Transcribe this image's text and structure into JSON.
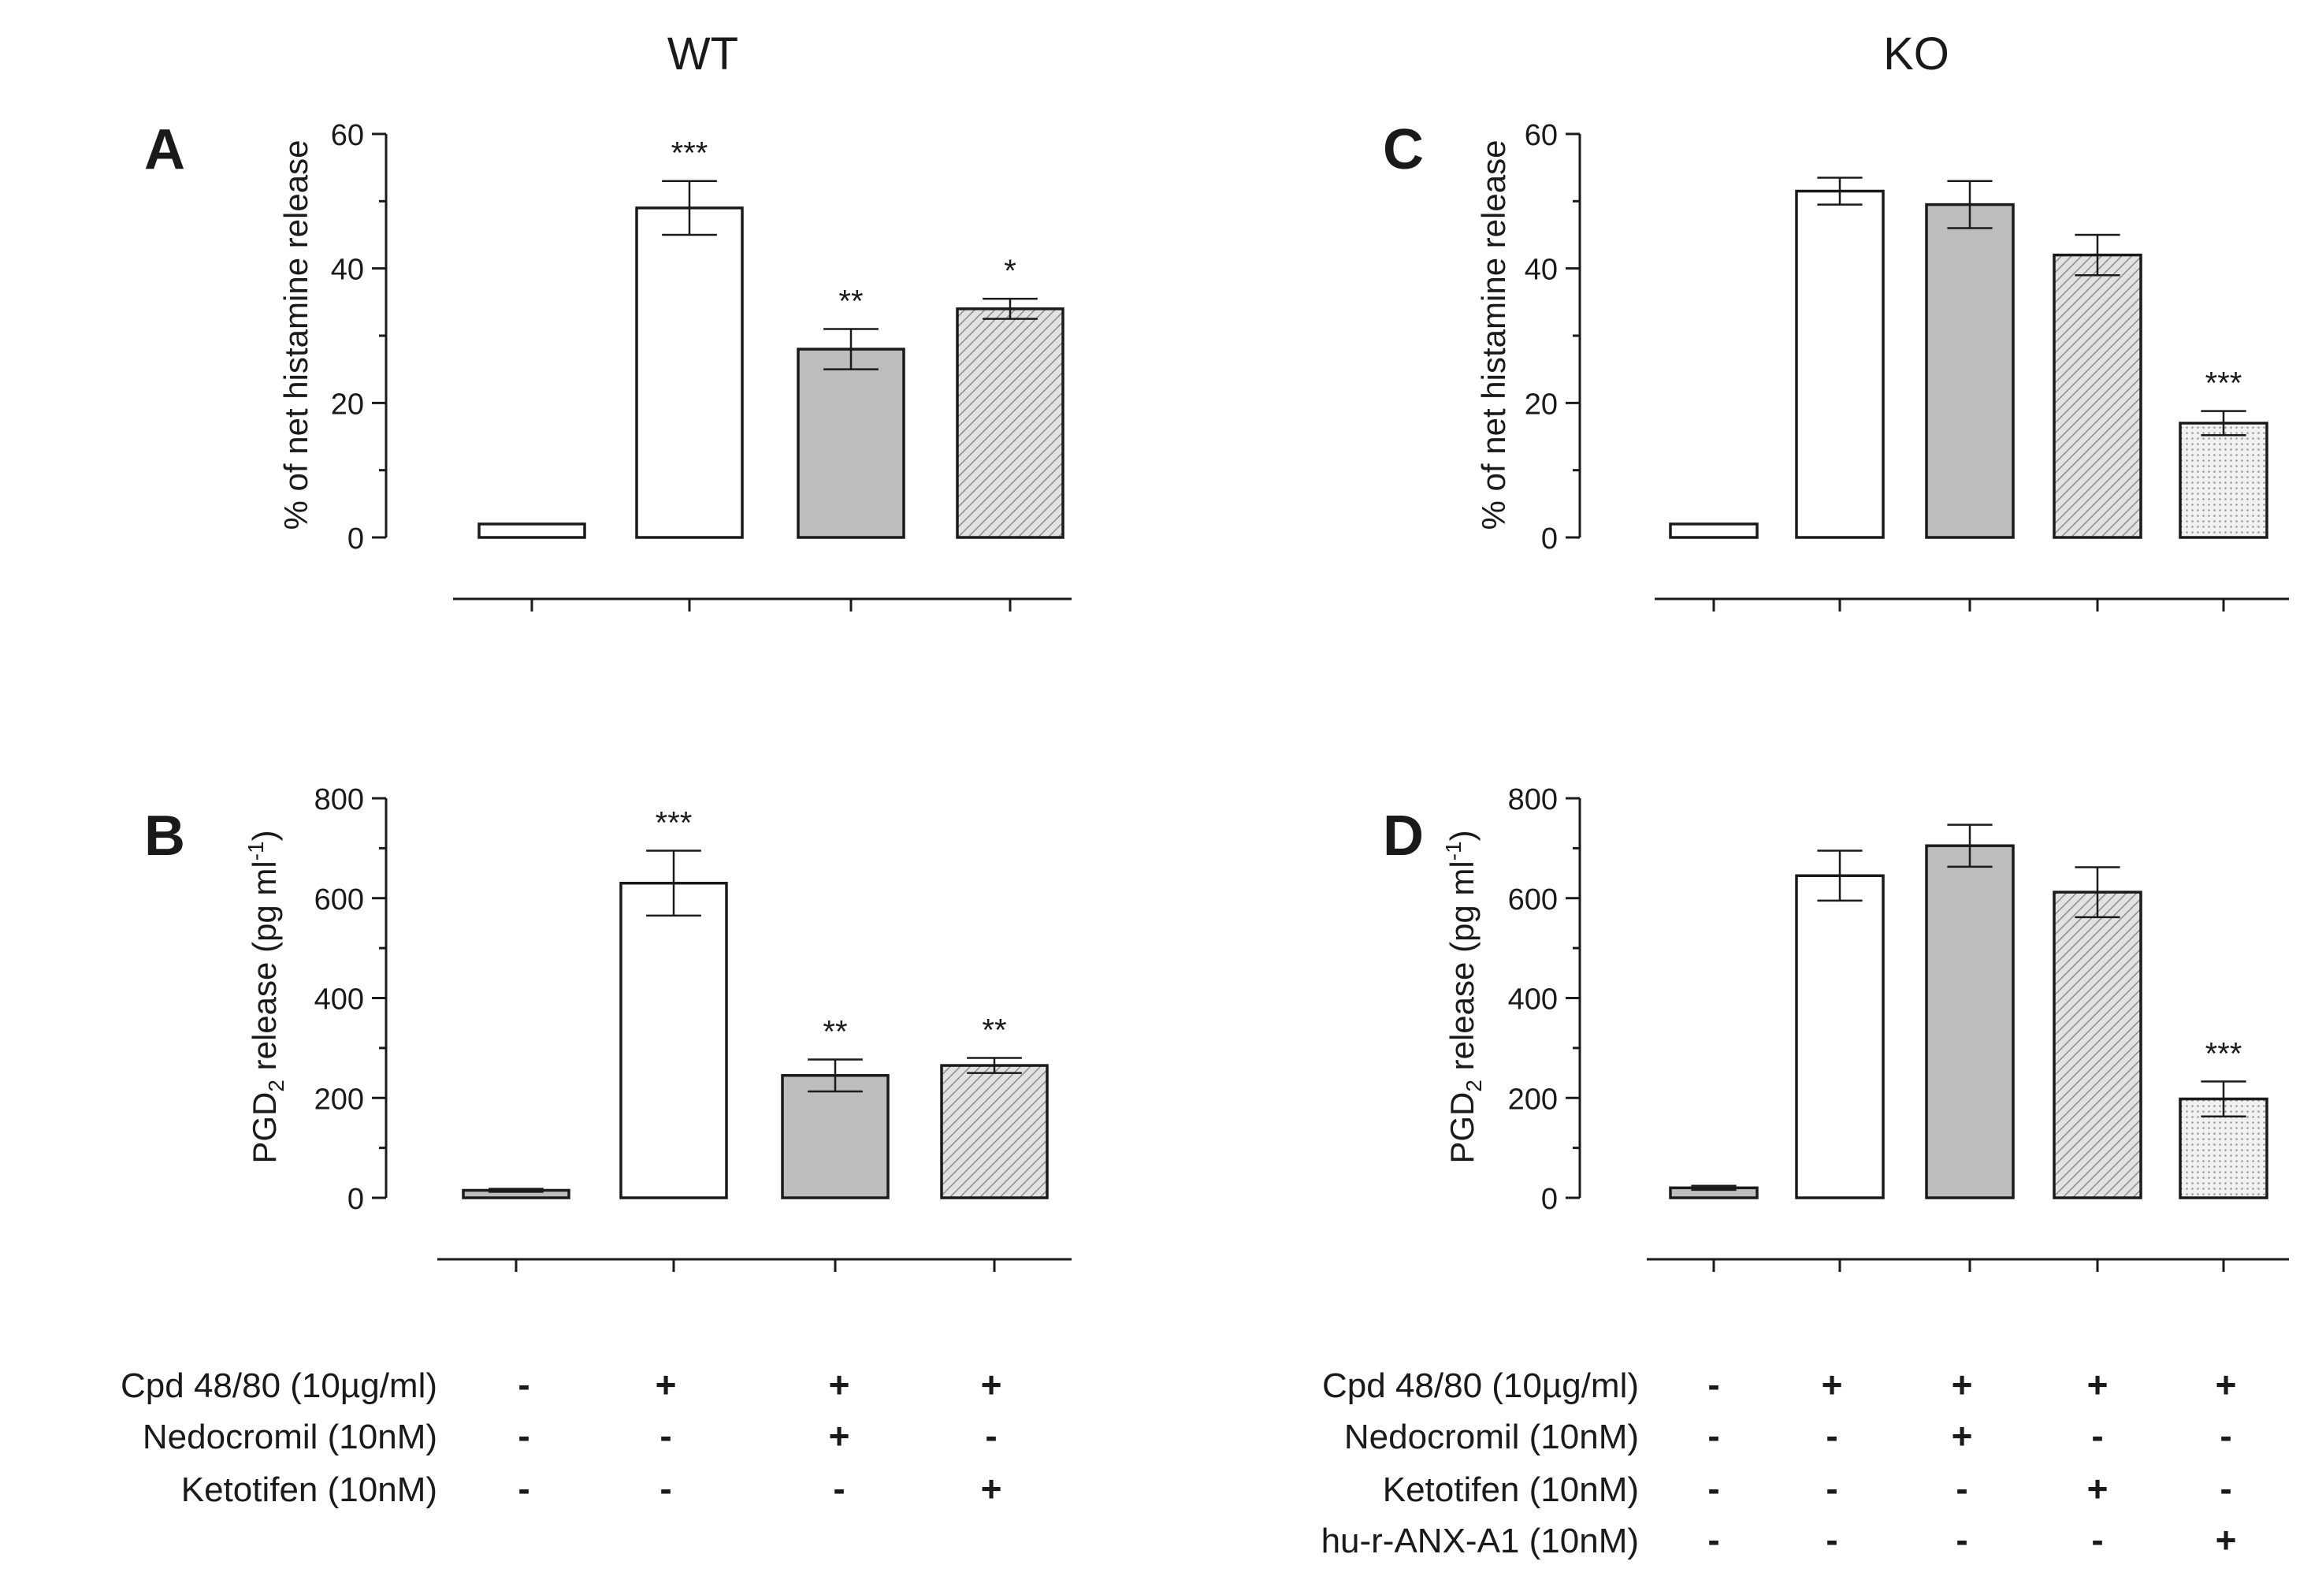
{
  "chart_data": [
    {
      "panel": "A",
      "group_title": "WT",
      "type": "bar",
      "ylabel": "% of net histamine release",
      "ylim": [
        0,
        60
      ],
      "yticks": [
        0,
        20,
        40,
        60
      ],
      "values": [
        2,
        49,
        28,
        34
      ],
      "errors": [
        0.3,
        4,
        3,
        1.5
      ],
      "significance": [
        "",
        "***",
        "**",
        "*"
      ],
      "fills": [
        "white",
        "white",
        "gray",
        "hatched"
      ]
    },
    {
      "panel": "B",
      "type": "bar",
      "ylabel": "PGD2 release (pg ml-1)",
      "ylabel_main": "PGD",
      "ylabel_sub": "2",
      "ylabel_rest": " release (pg ml",
      "ylabel_sup": "-1",
      "ylabel_end": ")",
      "ylim": [
        0,
        800
      ],
      "yticks": [
        0,
        200,
        400,
        600,
        800
      ],
      "values": [
        15,
        630,
        245,
        265
      ],
      "errors": [
        3,
        65,
        32,
        15
      ],
      "significance": [
        "",
        "***",
        "**",
        "**"
      ],
      "fills": [
        "gray",
        "white",
        "gray",
        "hatched"
      ]
    },
    {
      "panel": "C",
      "group_title": "KO",
      "type": "bar",
      "ylabel": "% of net histamine release",
      "ylim": [
        0,
        60
      ],
      "yticks": [
        0,
        20,
        40,
        60
      ],
      "values": [
        2,
        51.5,
        49.5,
        42,
        17
      ],
      "errors": [
        0.3,
        2,
        3.5,
        3,
        1.8
      ],
      "significance": [
        "",
        "",
        "",
        "",
        "***"
      ],
      "fills": [
        "white",
        "white",
        "gray",
        "hatched",
        "dotted"
      ]
    },
    {
      "panel": "D",
      "type": "bar",
      "ylabel": "PGD2 release (pg ml-1)",
      "ylabel_main": "PGD",
      "ylabel_sub": "2",
      "ylabel_rest": " release (pg ml",
      "ylabel_sup": "-1",
      "ylabel_end": ")",
      "ylim": [
        0,
        800
      ],
      "yticks": [
        0,
        200,
        400,
        600,
        800
      ],
      "values": [
        20,
        645,
        705,
        612,
        198
      ],
      "errors": [
        4,
        50,
        42,
        50,
        35
      ],
      "significance": [
        "",
        "",
        "",
        "",
        "***"
      ],
      "fills": [
        "gray",
        "white",
        "gray",
        "hatched",
        "dotted"
      ]
    }
  ],
  "conditions": {
    "wt": {
      "labels": [
        "Cpd 48/80 (10µg/ml)",
        "Nedocromil (10nM)",
        "Ketotifen (10nM)"
      ],
      "rows": [
        [
          "-",
          "+",
          "+",
          "+"
        ],
        [
          "-",
          "-",
          "+",
          "-"
        ],
        [
          "-",
          "-",
          "-",
          "+"
        ]
      ]
    },
    "ko": {
      "labels": [
        "Cpd 48/80 (10µg/ml)",
        "Nedocromil (10nM)",
        "Ketotifen (10nM)",
        "hu-r-ANX-A1 (10nM)"
      ],
      "rows": [
        [
          "-",
          "+",
          "+",
          "+",
          "+"
        ],
        [
          "-",
          "-",
          "+",
          "-",
          "-"
        ],
        [
          "-",
          "-",
          "-",
          "+",
          "-"
        ],
        [
          "-",
          "-",
          "-",
          "-",
          "+"
        ]
      ]
    }
  }
}
